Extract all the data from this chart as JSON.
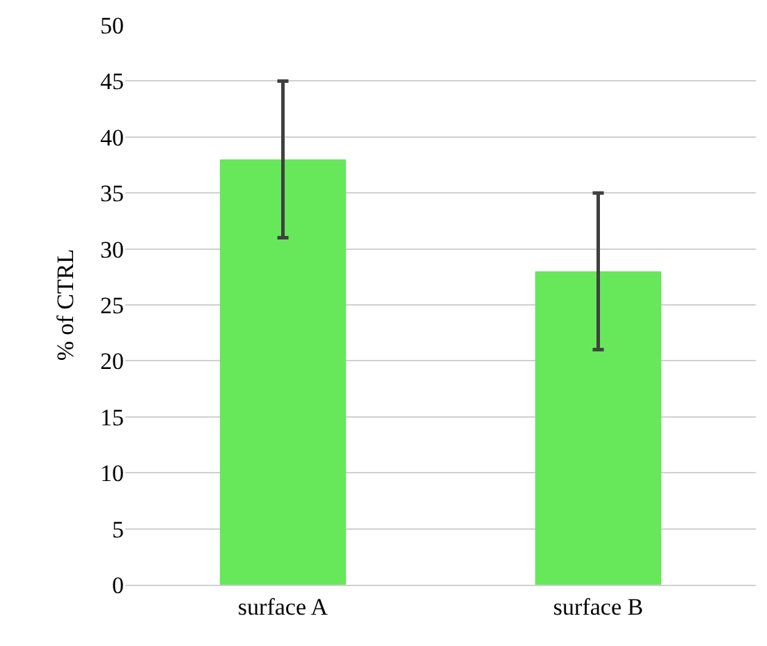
{
  "chart_data": {
    "type": "bar",
    "ylabel": "% of CTRL",
    "categories": [
      "surface A",
      "surface B"
    ],
    "values": [
      38,
      28
    ],
    "errors": [
      7,
      7
    ],
    "color": "#66e85a",
    "ylim": [
      0,
      50
    ],
    "yticks": [
      0,
      5,
      10,
      15,
      20,
      25,
      30,
      35,
      40,
      45,
      50
    ],
    "grid": "y"
  }
}
